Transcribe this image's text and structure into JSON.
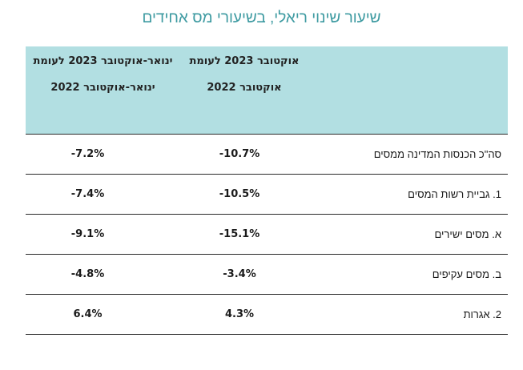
{
  "title": "שיעור שינוי ריאלי, בשיעורי מס אחידים",
  "table": {
    "headers": {
      "label": "",
      "oct": "אוקטובר 2023 לעומת אוקטובר 2022",
      "ytd": "ינואר-אוקטובר 2023 לעומת ינואר-אוקטובר 2022"
    },
    "rows": [
      {
        "label": "סה\"כ הכנסות המדינה ממסים",
        "oct": "-10.7%",
        "ytd": "-7.2%"
      },
      {
        "label": "1. גביית רשות המסים",
        "oct": "-10.5%",
        "ytd": "-7.4%"
      },
      {
        "label": "א. מסים ישירים",
        "oct": "-15.1%",
        "ytd": "-9.1%"
      },
      {
        "label": "ב. מסים עקיפים",
        "oct": "-3.4%",
        "ytd": "-4.8%"
      },
      {
        "label": "2. אגרות",
        "oct": "4.3%",
        "ytd": "6.4%"
      }
    ]
  }
}
